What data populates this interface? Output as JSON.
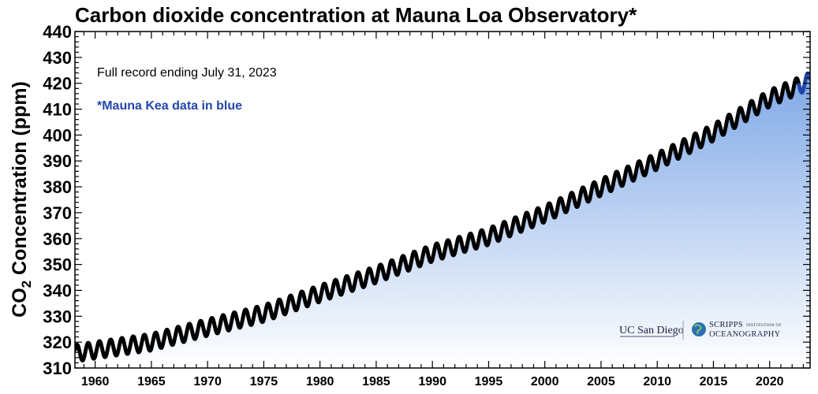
{
  "chart_data": {
    "type": "scatter",
    "title": "Carbon dioxide concentration at Mauna Loa Observatory*",
    "ylabel_main": "CO",
    "ylabel_sub": "2",
    "ylabel_rest": " Concentration (ppm)",
    "xlim": [
      1958.2,
      2023.6
    ],
    "ylim": [
      310,
      440
    ],
    "yticks": [
      310,
      320,
      330,
      340,
      350,
      360,
      370,
      380,
      390,
      400,
      410,
      420,
      430,
      440
    ],
    "xticks": [
      1960,
      1965,
      1970,
      1975,
      1980,
      1985,
      1990,
      1995,
      2000,
      2005,
      2010,
      2015,
      2020
    ],
    "grid": false,
    "seasonal_amplitude_ppm": 3.2,
    "trend_series": {
      "name": "",
      "x": [
        1958.2,
        1960,
        1965,
        1970,
        1975,
        1980,
        1985,
        1990,
        1995,
        2000,
        2005,
        2010,
        2015,
        2020,
        2023.6
      ],
      "y": [
        315.7,
        316.9,
        320.0,
        325.7,
        331.1,
        338.8,
        346.1,
        354.4,
        360.8,
        369.6,
        379.8,
        389.9,
        401.0,
        414.2,
        421.0
      ]
    },
    "annotations": [
      "Full record ending July 31, 2023",
      "*Mauna Kea data in blue"
    ],
    "logos": [
      "UC San Diego",
      "SCRIPPS",
      "INSTITUTION OF",
      "OCEANOGRAPHY"
    ],
    "colors": {
      "points": "#000000",
      "fill_top": "#7fa8e6",
      "fill_bottom": "#ffffff",
      "mauna_kea": "#2446a8"
    }
  }
}
